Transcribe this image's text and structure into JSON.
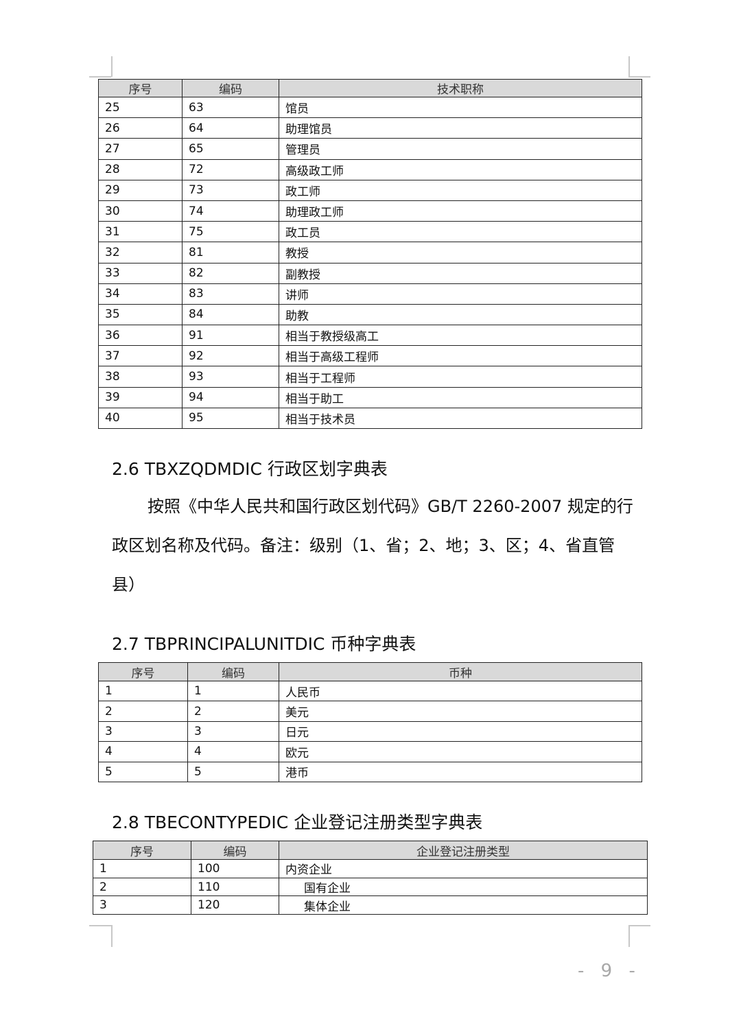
{
  "table1": {
    "headers": [
      "序号",
      "编码",
      "技术职称"
    ],
    "rows": [
      [
        "25",
        "63",
        "馆员"
      ],
      [
        "26",
        "64",
        "助理馆员"
      ],
      [
        "27",
        "65",
        "管理员"
      ],
      [
        "28",
        "72",
        "高级政工师"
      ],
      [
        "29",
        "73",
        "政工师"
      ],
      [
        "30",
        "74",
        "助理政工师"
      ],
      [
        "31",
        "75",
        "政工员"
      ],
      [
        "32",
        "81",
        "教授"
      ],
      [
        "33",
        "82",
        "副教授"
      ],
      [
        "34",
        "83",
        "讲师"
      ],
      [
        "35",
        "84",
        "助教"
      ],
      [
        "36",
        "91",
        "相当于教授级高工"
      ],
      [
        "37",
        "92",
        "相当于高级工程师"
      ],
      [
        "38",
        "93",
        "相当于工程师"
      ],
      [
        "39",
        "94",
        "相当于助工"
      ],
      [
        "40",
        "95",
        "相当于技术员"
      ]
    ]
  },
  "section26": {
    "heading": "2.6 TBXZQDMDIC 行政区划字典表",
    "paragraph": "按照《中华人民共和国行政区划代码》GB/T 2260-2007 规定的行政区划名称及代码。备注：级别（1、省；2、地；3、区；4、省直管县）"
  },
  "section27": {
    "heading": "2.7 TBPRINCIPALUNITDIC 币种字典表"
  },
  "table2": {
    "headers": [
      "序号",
      "编码",
      "币种"
    ],
    "rows": [
      [
        "1",
        "1",
        "人民币"
      ],
      [
        "2",
        "2",
        "美元"
      ],
      [
        "3",
        "3",
        "日元"
      ],
      [
        "4",
        "4",
        "欧元"
      ],
      [
        "5",
        "5",
        "港币"
      ]
    ]
  },
  "section28": {
    "heading": "2.8 TBECONTYPEDIC 企业登记注册类型字典表"
  },
  "table3": {
    "headers": [
      "序号",
      "编码",
      "企业登记注册类型"
    ],
    "rows": [
      [
        "1",
        "100",
        "内资企业"
      ],
      [
        "2",
        "110",
        "国有企业"
      ],
      [
        "3",
        "120",
        "集体企业"
      ]
    ],
    "bold_rows": [
      0
    ],
    "indented_rows": [
      1,
      2
    ]
  },
  "page_number": "- 9 -"
}
